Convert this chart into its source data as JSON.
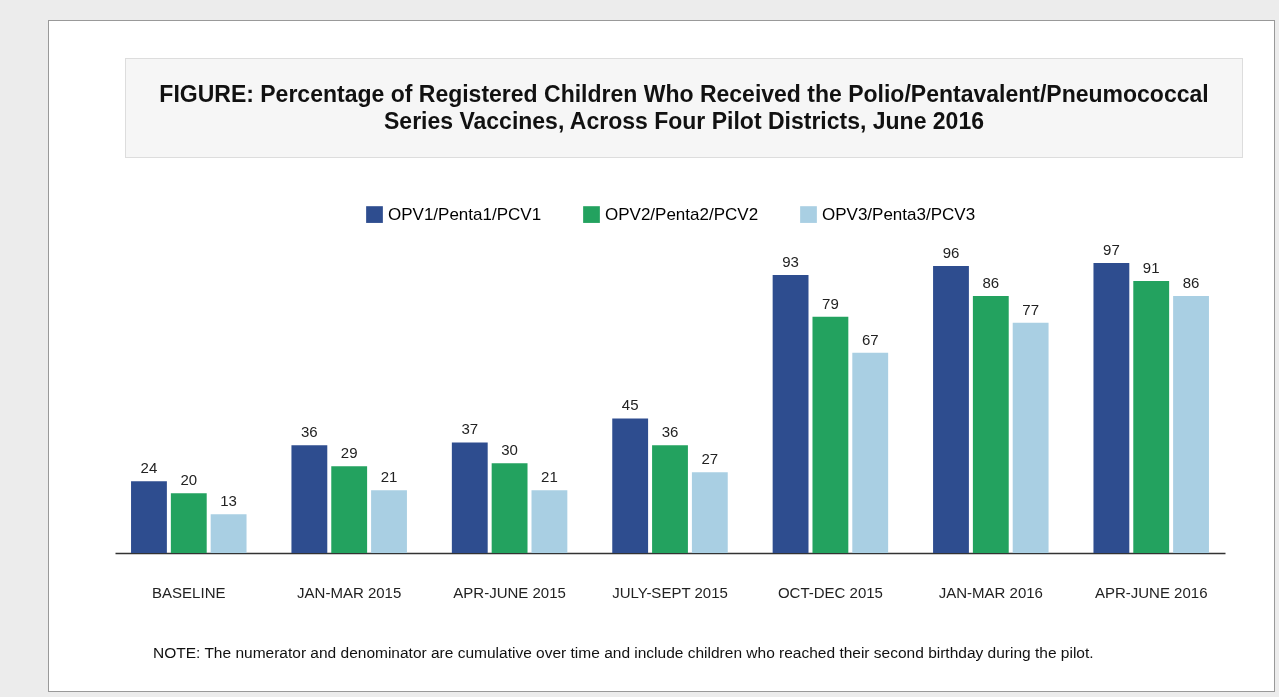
{
  "chart_data": {
    "type": "bar",
    "title": "FIGURE: Percentage of Registered Children Who Received the Polio/Pentavalent/Pneumococcal Series Vaccines, Across Four Pilot Districts, June 2016",
    "categories": [
      "BASELINE",
      "JAN-MAR 2015",
      "APR-JUNE 2015",
      "JULY-SEPT 2015",
      "OCT-DEC 2015",
      "JAN-MAR 2016",
      "APR-JUNE 2016"
    ],
    "series": [
      {
        "name": "OPV1/Penta1/PCV1",
        "color": "#2e4d8f",
        "values": [
          24,
          36,
          37,
          45,
          93,
          96,
          97
        ]
      },
      {
        "name": "OPV2/Penta2/PCV2",
        "color": "#23a25f",
        "values": [
          20,
          29,
          30,
          36,
          79,
          86,
          91
        ]
      },
      {
        "name": "OPV3/Penta3/PCV3",
        "color": "#a9cfe3",
        "values": [
          13,
          21,
          21,
          27,
          67,
          77,
          86
        ]
      }
    ],
    "data_labels": true,
    "legend": "top",
    "annotations": [
      "NOTE: The numerator and denominator are cumulative over time and include children who reached their second birthday during the pilot."
    ]
  }
}
